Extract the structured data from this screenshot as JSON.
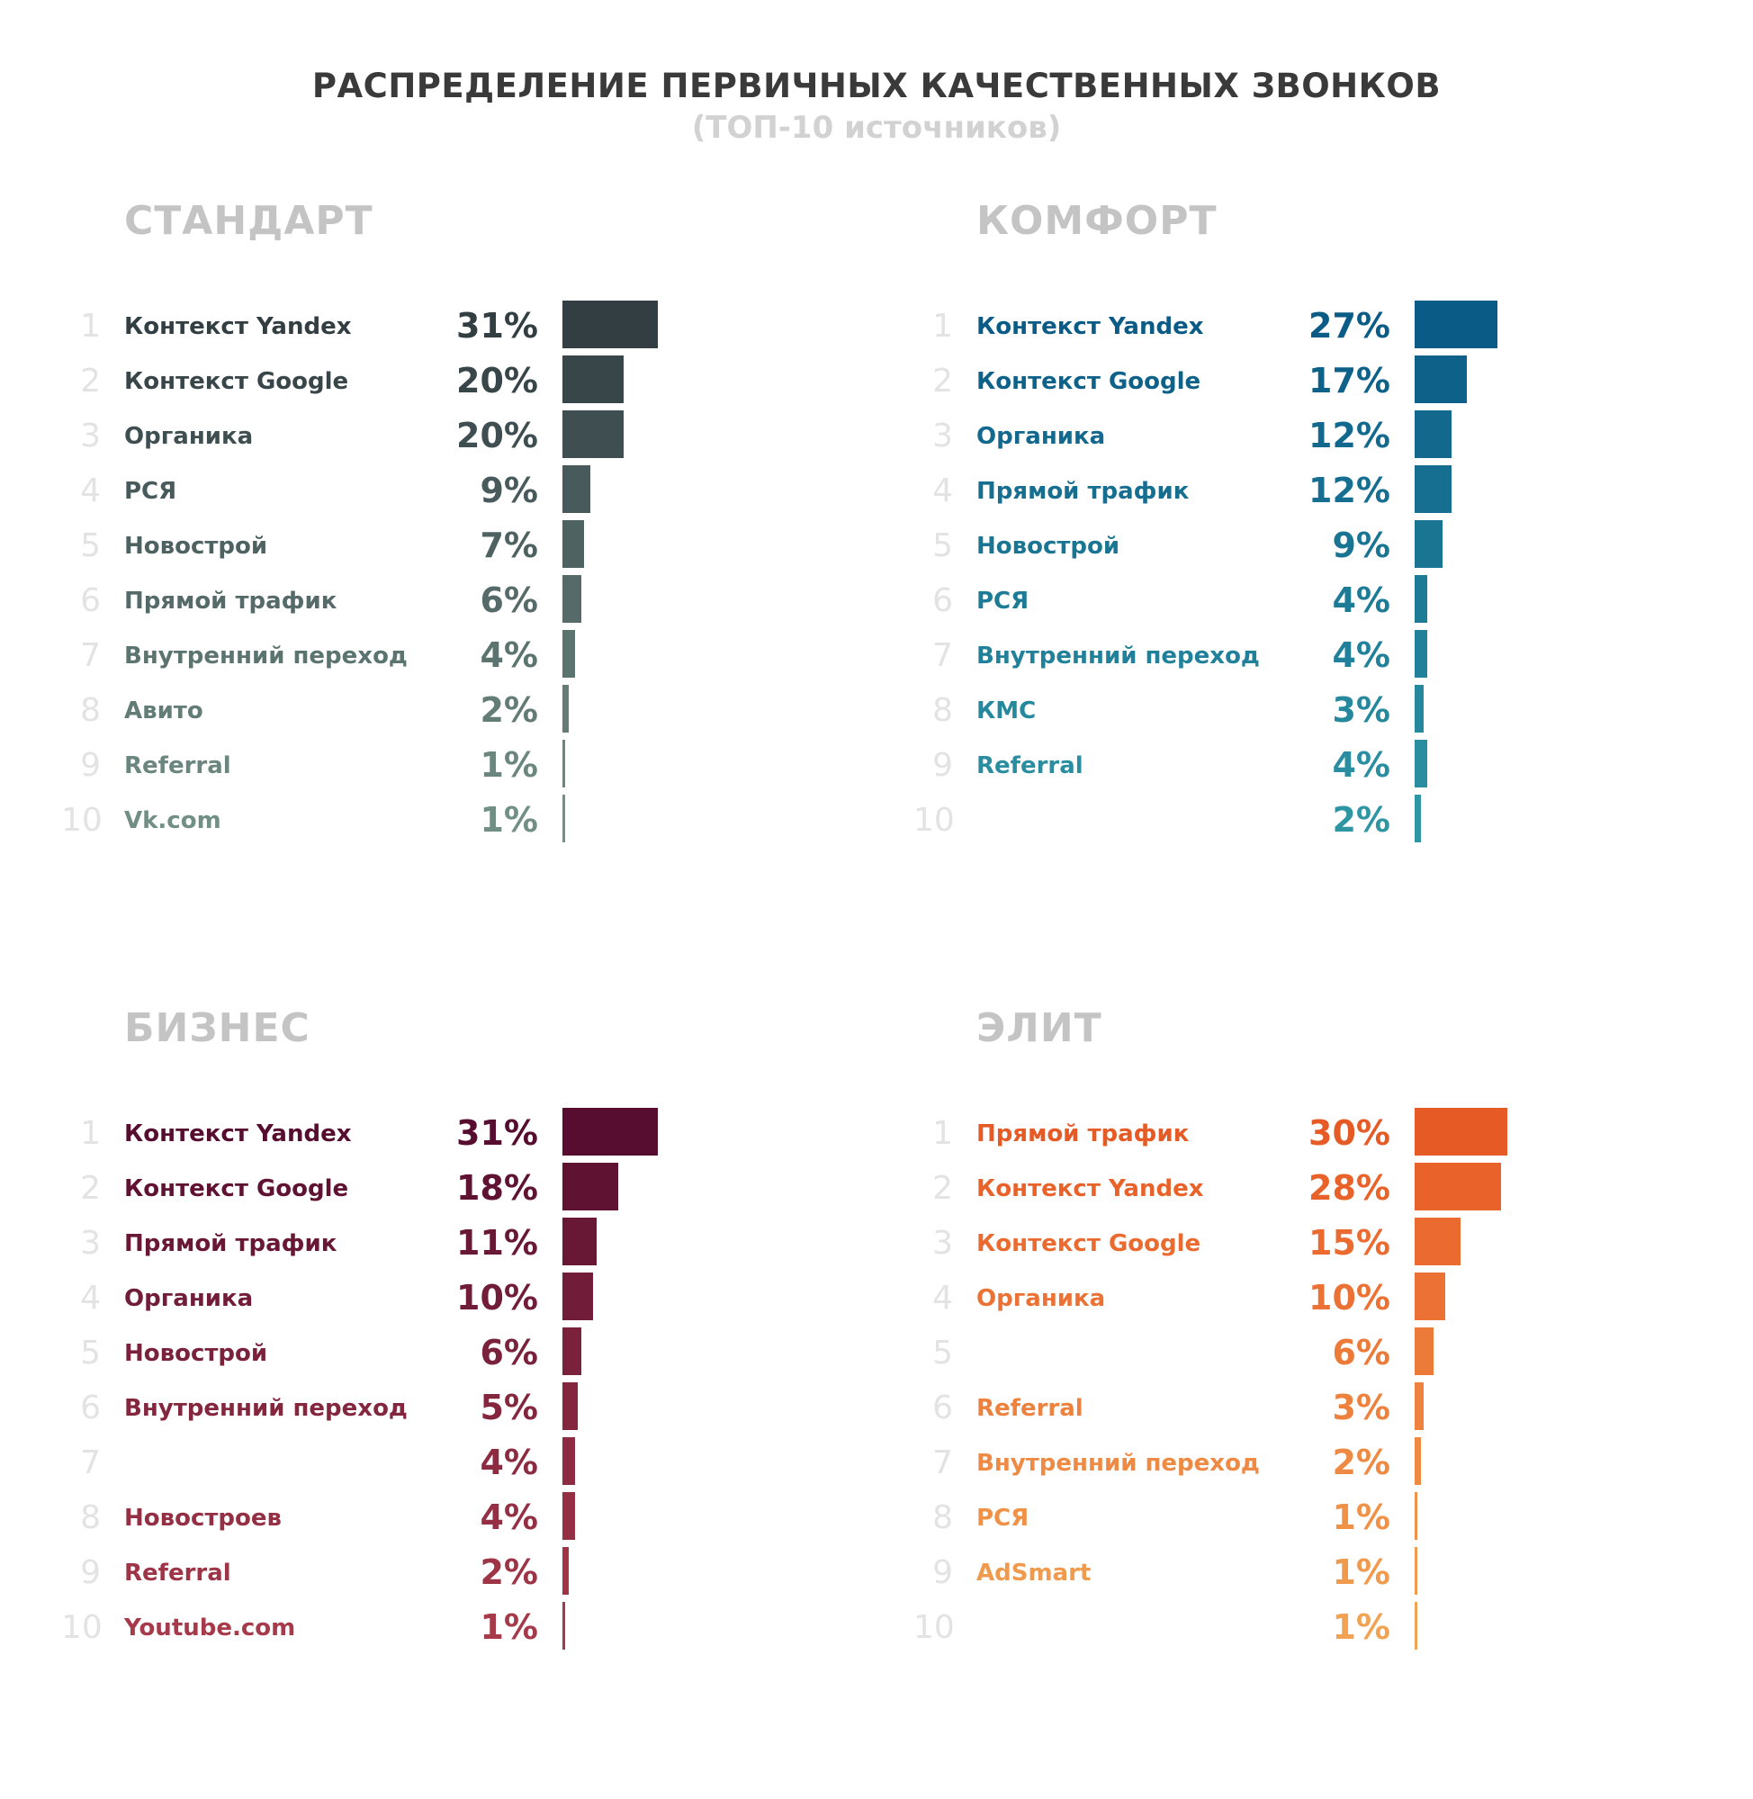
{
  "title": "РАСПРЕДЕЛЕНИЕ ПЕРВИЧНЫХ КАЧЕСТВЕННЫХ ЗВОНКОВ",
  "subtitle": "(ТОП-10 источников)",
  "chart_data": [
    {
      "type": "bar",
      "title": "СТАНДАРТ",
      "ranks": [
        "1",
        "2",
        "3",
        "4",
        "5",
        "6",
        "7",
        "8",
        "9",
        "10"
      ],
      "categories": [
        "Контекст Yandex",
        "Контекст Google",
        "Органика",
        "РСЯ",
        "Новострой",
        "Прямой трафик",
        "Внутренний переход",
        "Авито",
        "Referral",
        "Vk.com"
      ],
      "values": [
        31,
        20,
        20,
        9,
        7,
        6,
        4,
        2,
        1,
        1
      ],
      "value_labels": [
        "31%",
        "20%",
        "20%",
        "9%",
        "7%",
        "6%",
        "4%",
        "2%",
        "1%",
        "1%"
      ],
      "colors": [
        "#323e42",
        "#384649",
        "#3f4e51",
        "#485a5b",
        "#4f6262",
        "#566b69",
        "#5c746f",
        "#637c76",
        "#6b867e",
        "#728f86"
      ]
    },
    {
      "type": "bar",
      "title": "КОМФОРТ",
      "ranks": [
        "1",
        "2",
        "3",
        "4",
        "5",
        "6",
        "7",
        "8",
        "9",
        "10"
      ],
      "categories": [
        "Контекст Yandex",
        "Контекст Google",
        "Органика",
        "Прямой трафик",
        "Новострой",
        "РСЯ",
        "Внутренний переход",
        "КМС",
        "Referral",
        ""
      ],
      "values": [
        27,
        17,
        12,
        12,
        9,
        4,
        4,
        3,
        4,
        2
      ],
      "value_labels": [
        "27%",
        "17%",
        "12%",
        "12%",
        "9%",
        "4%",
        "4%",
        "3%",
        "4%",
        "2%"
      ],
      "colors": [
        "#0a5b86",
        "#0e6189",
        "#12688d",
        "#166e90",
        "#1a7593",
        "#1e7b96",
        "#22819a",
        "#26889d",
        "#2a8ea0",
        "#2e95a3"
      ]
    },
    {
      "type": "bar",
      "title": "БИЗНЕС",
      "ranks": [
        "1",
        "2",
        "3",
        "4",
        "5",
        "6",
        "7",
        "8",
        "9",
        "10"
      ],
      "categories": [
        "Контекст Yandex",
        "Контекст Google",
        "Прямой трафик",
        "Органика",
        "Новострой",
        "Внутренний переход",
        "",
        "Новостроев",
        "Referral",
        "Youtube.com"
      ],
      "values": [
        31,
        18,
        11,
        10,
        6,
        5,
        4,
        4,
        2,
        1
      ],
      "value_labels": [
        "31%",
        "18%",
        "11%",
        "10%",
        "6%",
        "5%",
        "4%",
        "4%",
        "2%",
        "1%"
      ],
      "colors": [
        "#560d2f",
        "#5f1232",
        "#681735",
        "#711c38",
        "#7a213b",
        "#83263e",
        "#8c2b41",
        "#953044",
        "#9e3547",
        "#a73a4a"
      ]
    },
    {
      "type": "bar",
      "title": "ЭЛИТ",
      "ranks": [
        "1",
        "2",
        "3",
        "4",
        "5",
        "6",
        "7",
        "8",
        "9",
        "10"
      ],
      "categories": [
        "Прямой трафик",
        "Контекст Yandex",
        "Контекст Google",
        "Органика",
        "",
        "Referral",
        "Внутренний переход",
        "РСЯ",
        "AdSmart",
        ""
      ],
      "values": [
        30,
        28,
        15,
        10,
        6,
        3,
        2,
        1,
        1,
        1
      ],
      "value_labels": [
        "30%",
        "28%",
        "15%",
        "10%",
        "6%",
        "3%",
        "2%",
        "1%",
        "1%",
        "1%"
      ],
      "colors": [
        "#e65a25",
        "#e8622a",
        "#ea6a2f",
        "#eb7234",
        "#ec7a39",
        "#ed823e",
        "#ee8a43",
        "#ef9248",
        "#f09a4d",
        "#f1a252"
      ]
    }
  ]
}
